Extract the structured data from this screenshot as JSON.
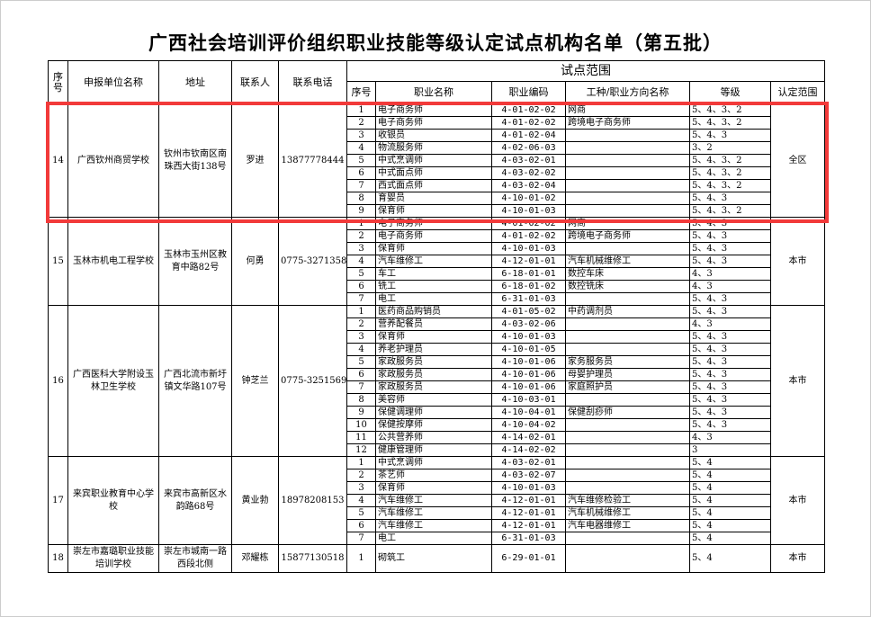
{
  "title": "广西社会培训评价组织职业技能等级认定试点机构名单（第五批）",
  "headers": {
    "no": "序号",
    "unit": "申报单位名称",
    "address": "地址",
    "contact": "联系人",
    "phone": "联系电话",
    "scope_group": "试点范围",
    "sub_no": "序号",
    "occupation": "职业名称",
    "code": "职业编码",
    "direction": "工种/职业方向名称",
    "level": "等级",
    "area": "认定范围"
  },
  "highlight_color": "#f23a3a",
  "institutions": [
    {
      "no": "14",
      "unit": "广西钦州商贸学校",
      "address": "钦州市钦南区南珠西大街138号",
      "contact": "罗进",
      "phone": "13877778444",
      "area": "全区",
      "items": [
        [
          "1",
          "电子商务师",
          "4-01-02-02",
          "网商",
          "5、4、3、2"
        ],
        [
          "2",
          "电子商务师",
          "4-01-02-02",
          "跨境电子商务师",
          "5、4、3、2"
        ],
        [
          "3",
          "收银员",
          "4-01-02-04",
          "",
          "5、4、3"
        ],
        [
          "4",
          "物流服务师",
          "4-02-06-03",
          "",
          "3、2"
        ],
        [
          "5",
          "中式烹调师",
          "4-03-02-01",
          "",
          "5、4、3、2"
        ],
        [
          "6",
          "中式面点师",
          "4-03-02-02",
          "",
          "5、4、3、2"
        ],
        [
          "7",
          "西式面点师",
          "4-03-02-04",
          "",
          "5、4、3、2"
        ],
        [
          "8",
          "育婴员",
          "4-10-01-02",
          "",
          "5、4、3"
        ],
        [
          "9",
          "保育师",
          "4-10-01-03",
          "",
          "5、4、3、2"
        ]
      ]
    },
    {
      "no": "15",
      "unit": "玉林市机电工程学校",
      "address": "玉林市玉州区教育中路82号",
      "contact": "何勇",
      "phone": "0775-3271358",
      "area": "本市",
      "items": [
        [
          "1",
          "电子商务师",
          "4-01-02-02",
          "网商",
          "5、4、3"
        ],
        [
          "2",
          "电子商务师",
          "4-01-02-02",
          "跨境电子商务师",
          "5、4、3"
        ],
        [
          "3",
          "保育师",
          "4-10-01-03",
          "",
          "5、4、3"
        ],
        [
          "4",
          "汽车维修工",
          "4-12-01-01",
          "汽车机械维修工",
          "5、4、3"
        ],
        [
          "5",
          "车工",
          "6-18-01-01",
          "数控车床",
          "4、3"
        ],
        [
          "6",
          "铣工",
          "6-18-01-02",
          "数控铣床",
          "4、3"
        ],
        [
          "7",
          "电工",
          "6-31-01-03",
          "",
          "5、4、3"
        ]
      ]
    },
    {
      "no": "16",
      "unit": "广西医科大学附设玉林卫生学校",
      "address": "广西北流市新圩镇文华路107号",
      "contact": "钟芝兰",
      "phone": "0775-3251569",
      "area": "本市",
      "items": [
        [
          "1",
          "医药商品购销员",
          "4-01-05-02",
          "中药调剂员",
          "5、4、3"
        ],
        [
          "2",
          "营养配餐员",
          "4-03-02-06",
          "",
          "4、3"
        ],
        [
          "3",
          "保育师",
          "4-10-01-03",
          "",
          "5、4、3"
        ],
        [
          "4",
          "养老护理员",
          "4-10-01-05",
          "",
          "5、4、3"
        ],
        [
          "5",
          "家政服务员",
          "4-10-01-06",
          "家务服务员",
          "5、4、3"
        ],
        [
          "6",
          "家政服务员",
          "4-10-01-06",
          "母婴护理员",
          "5、4、3"
        ],
        [
          "7",
          "家政服务员",
          "4-10-01-06",
          "家庭照护员",
          "5、4、3"
        ],
        [
          "8",
          "美容师",
          "4-10-03-01",
          "",
          "5、4、3"
        ],
        [
          "9",
          "保健调理师",
          "4-10-04-01",
          "保健刮痧师",
          "5、4、3"
        ],
        [
          "10",
          "保健按摩师",
          "4-10-04-02",
          "",
          "5、4、3"
        ],
        [
          "11",
          "公共营养师",
          "4-14-02-01",
          "",
          "4、3"
        ],
        [
          "12",
          "健康管理师",
          "4-14-02-02",
          "",
          "3"
        ]
      ]
    },
    {
      "no": "17",
      "unit": "来宾职业教育中心学校",
      "address": "来宾市高新区水韵路68号",
      "contact": "黄业勃",
      "phone": "18978208153",
      "area": "本市",
      "items": [
        [
          "1",
          "中式烹调师",
          "4-03-02-01",
          "",
          "5、4"
        ],
        [
          "2",
          "茶艺师",
          "4-03-02-07",
          "",
          "5、4"
        ],
        [
          "3",
          "保育师",
          "4-10-01-03",
          "",
          "5、4"
        ],
        [
          "4",
          "汽车维修工",
          "4-12-01-01",
          "汽车维修检验工",
          "5、4"
        ],
        [
          "5",
          "汽车维修工",
          "4-12-01-01",
          "汽车机械维修工",
          "5、4"
        ],
        [
          "6",
          "汽车维修工",
          "4-12-01-01",
          "汽车电器维修工",
          "5、4"
        ],
        [
          "7",
          "电工",
          "6-31-01-03",
          "",
          "5、4"
        ]
      ]
    },
    {
      "no": "18",
      "unit": "崇左市嘉璐职业技能培训学校",
      "address": "崇左市城南一路西段北侧",
      "contact": "邓耀栋",
      "phone": "15877130518",
      "area": "本市",
      "items": [
        [
          "1",
          "砌筑工",
          "6-29-01-01",
          "",
          "5、4"
        ]
      ]
    }
  ]
}
